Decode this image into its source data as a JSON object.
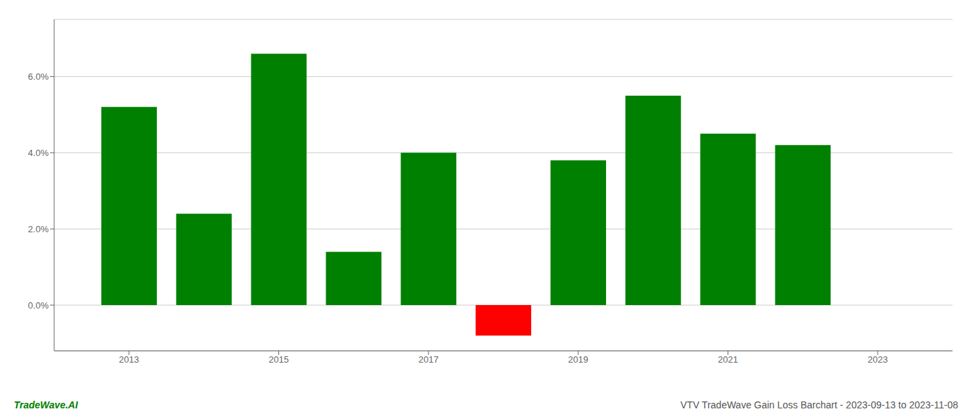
{
  "chart_data": {
    "type": "bar",
    "x": [
      2013,
      2014,
      2015,
      2016,
      2017,
      2018,
      2019,
      2020,
      2021,
      2022
    ],
    "values": [
      0.052,
      0.024,
      0.066,
      0.014,
      0.04,
      -0.008,
      0.038,
      0.055,
      0.045,
      0.042
    ],
    "colors": [
      "#008000",
      "#008000",
      "#008000",
      "#008000",
      "#008000",
      "#ff0000",
      "#008000",
      "#008000",
      "#008000",
      "#008000"
    ],
    "xlim": [
      2012.0,
      2024.0
    ],
    "xticks": [
      2013,
      2015,
      2017,
      2019,
      2021,
      2023
    ],
    "ylim": [
      -0.012,
      0.075
    ],
    "yticks": [
      {
        "value": 0.0,
        "label": "0.0%"
      },
      {
        "value": 0.02,
        "label": "2.0%"
      },
      {
        "value": 0.04,
        "label": "4.0%"
      },
      {
        "value": 0.06,
        "label": "6.0%"
      }
    ],
    "grid": true,
    "annotations": [
      {
        "text": "TradeWave.AI",
        "color": "#008000"
      },
      {
        "text": "VTV TradeWave Gain Loss Barchart - 2023-09-13 to 2023-11-08",
        "color": "#555555"
      }
    ]
  }
}
